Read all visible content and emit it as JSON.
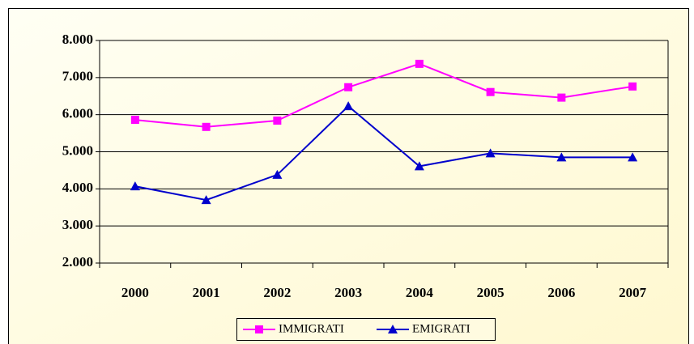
{
  "chart_data": {
    "type": "line",
    "categories": [
      "2000",
      "2001",
      "2002",
      "2003",
      "2004",
      "2005",
      "2006",
      "2007"
    ],
    "series": [
      {
        "name": "IMMIGRATI",
        "color": "#ff00ff",
        "marker": "square",
        "values": [
          5860,
          5670,
          5840,
          6740,
          7370,
          6610,
          6460,
          6760
        ]
      },
      {
        "name": "EMIGRATI",
        "color": "#0000cc",
        "marker": "triangle",
        "values": [
          4070,
          3700,
          4380,
          6230,
          4610,
          4960,
          4850,
          4850
        ]
      }
    ],
    "ylim": [
      2000,
      8000
    ],
    "yticks": [
      {
        "value": 2000,
        "label": "2.000"
      },
      {
        "value": 3000,
        "label": "3.000"
      },
      {
        "value": 4000,
        "label": "4.000"
      },
      {
        "value": 5000,
        "label": "5.000"
      },
      {
        "value": 6000,
        "label": "6.000"
      },
      {
        "value": 7000,
        "label": "7.000"
      },
      {
        "value": 8000,
        "label": "8.000"
      }
    ],
    "grid": true,
    "legend": "bottom"
  }
}
